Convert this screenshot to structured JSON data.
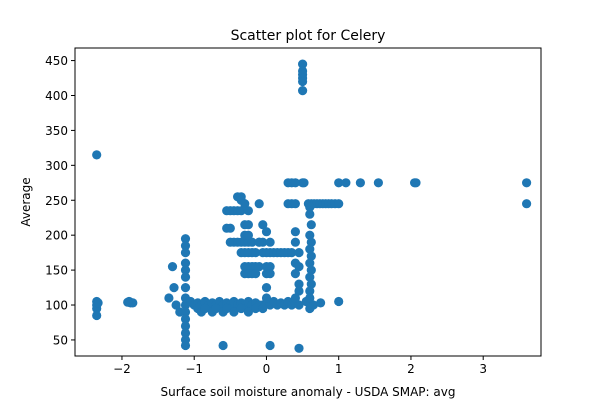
{
  "chart_data": {
    "type": "scatter",
    "title": "Scatter plot for Celery",
    "xlabel": "Surface soil moisture anomaly  - USDA SMAP: avg",
    "ylabel": "Average",
    "xlim": [
      -2.65,
      3.8
    ],
    "ylim": [
      27,
      468
    ],
    "xticks": [
      -2,
      -1,
      0,
      1,
      2,
      3
    ],
    "yticks": [
      50,
      100,
      150,
      200,
      250,
      300,
      350,
      400,
      450
    ],
    "grid": false,
    "legend": "none",
    "marker_color": "#1f77b4",
    "series": [
      {
        "points": [
          [
            -2.35,
            315
          ],
          [
            -2.35,
            105
          ],
          [
            -2.35,
            100
          ],
          [
            -2.35,
            95
          ],
          [
            -2.35,
            85
          ],
          [
            -2.33,
            103
          ],
          [
            -1.9,
            105
          ],
          [
            -1.88,
            103
          ],
          [
            -1.85,
            103
          ],
          [
            -1.92,
            104
          ],
          [
            -1.35,
            110
          ],
          [
            -1.3,
            155
          ],
          [
            -1.28,
            125
          ],
          [
            -1.25,
            100
          ],
          [
            -1.2,
            90
          ],
          [
            -1.12,
            195
          ],
          [
            -1.12,
            185
          ],
          [
            -1.12,
            175
          ],
          [
            -1.12,
            160
          ],
          [
            -1.12,
            150
          ],
          [
            -1.12,
            140
          ],
          [
            -1.12,
            125
          ],
          [
            -1.12,
            110
          ],
          [
            -1.12,
            100
          ],
          [
            -1.12,
            90
          ],
          [
            -1.12,
            80
          ],
          [
            -1.12,
            70
          ],
          [
            -1.12,
            60
          ],
          [
            -1.12,
            50
          ],
          [
            -1.12,
            42
          ],
          [
            -1.05,
            105
          ],
          [
            -1.0,
            100
          ],
          [
            -0.95,
            103
          ],
          [
            -0.9,
            100
          ],
          [
            -0.85,
            105
          ],
          [
            -0.8,
            100
          ],
          [
            -0.75,
            103
          ],
          [
            -0.7,
            100
          ],
          [
            -0.65,
            105
          ],
          [
            -0.6,
            100
          ],
          [
            -0.55,
            103
          ],
          [
            -0.5,
            100
          ],
          [
            -0.45,
            105
          ],
          [
            -0.4,
            100
          ],
          [
            -0.35,
            103
          ],
          [
            -0.3,
            100
          ],
          [
            -0.25,
            105
          ],
          [
            -0.2,
            100
          ],
          [
            -0.15,
            103
          ],
          [
            -0.1,
            100
          ],
          [
            -0.05,
            100
          ],
          [
            0.0,
            103
          ],
          [
            0.05,
            100
          ],
          [
            0.1,
            105
          ],
          [
            0.15,
            100
          ],
          [
            0.2,
            103
          ],
          [
            0.25,
            100
          ],
          [
            0.3,
            105
          ],
          [
            0.35,
            100
          ],
          [
            0.4,
            103
          ],
          [
            0.45,
            100
          ],
          [
            0.55,
            105
          ],
          [
            0.65,
            100
          ],
          [
            0.75,
            103
          ],
          [
            -0.95,
            95
          ],
          [
            -0.9,
            90
          ],
          [
            -0.85,
            95
          ],
          [
            -0.75,
            90
          ],
          [
            -0.7,
            95
          ],
          [
            -0.6,
            90
          ],
          [
            -0.55,
            95
          ],
          [
            -0.45,
            90
          ],
          [
            -0.35,
            95
          ],
          [
            -0.25,
            90
          ],
          [
            -0.15,
            95
          ],
          [
            -0.05,
            95
          ],
          [
            -0.6,
            42
          ],
          [
            -0.55,
            235
          ],
          [
            -0.5,
            235
          ],
          [
            -0.45,
            235
          ],
          [
            -0.4,
            235
          ],
          [
            -0.55,
            210
          ],
          [
            -0.5,
            210
          ],
          [
            -0.5,
            190
          ],
          [
            -0.45,
            190
          ],
          [
            -0.4,
            190
          ],
          [
            -0.35,
            190
          ],
          [
            -0.3,
            190
          ],
          [
            -0.25,
            190
          ],
          [
            -0.2,
            190
          ],
          [
            -0.1,
            190
          ],
          [
            -0.05,
            190
          ],
          [
            -0.4,
            255
          ],
          [
            -0.35,
            255
          ],
          [
            -0.35,
            250
          ],
          [
            -0.3,
            245
          ],
          [
            -0.35,
            235
          ],
          [
            -0.25,
            235
          ],
          [
            -0.3,
            215
          ],
          [
            -0.25,
            215
          ],
          [
            -0.3,
            200
          ],
          [
            -0.25,
            200
          ],
          [
            -0.35,
            175
          ],
          [
            -0.3,
            175
          ],
          [
            -0.25,
            175
          ],
          [
            -0.2,
            175
          ],
          [
            -0.15,
            175
          ],
          [
            -0.3,
            155
          ],
          [
            -0.25,
            155
          ],
          [
            -0.2,
            155
          ],
          [
            -0.15,
            155
          ],
          [
            -0.1,
            155
          ],
          [
            -0.3,
            145
          ],
          [
            -0.25,
            145
          ],
          [
            -0.2,
            145
          ],
          [
            -0.15,
            145
          ],
          [
            -0.1,
            245
          ],
          [
            -0.05,
            215
          ],
          [
            -0.1,
            190
          ],
          [
            -0.05,
            175
          ],
          [
            0.0,
            205
          ],
          [
            0.0,
            175
          ],
          [
            0.05,
            175
          ],
          [
            0.1,
            175
          ],
          [
            0.15,
            175
          ],
          [
            0.2,
            175
          ],
          [
            0.25,
            175
          ],
          [
            0.0,
            155
          ],
          [
            0.05,
            155
          ],
          [
            0.0,
            145
          ],
          [
            0.05,
            145
          ],
          [
            0.05,
            190
          ],
          [
            0.0,
            125
          ],
          [
            0.0,
            110
          ],
          [
            0.05,
            42
          ],
          [
            0.3,
            275
          ],
          [
            0.3,
            245
          ],
          [
            0.35,
            245
          ],
          [
            0.4,
            245
          ],
          [
            0.35,
            275
          ],
          [
            0.4,
            275
          ],
          [
            0.3,
            175
          ],
          [
            0.35,
            175
          ],
          [
            0.4,
            205
          ],
          [
            0.4,
            190
          ],
          [
            0.45,
            175
          ],
          [
            0.4,
            160
          ],
          [
            0.4,
            145
          ],
          [
            0.45,
            155
          ],
          [
            0.45,
            130
          ],
          [
            0.45,
            120
          ],
          [
            0.4,
            110
          ],
          [
            0.45,
            38
          ],
          [
            0.5,
            445
          ],
          [
            0.5,
            435
          ],
          [
            0.5,
            430
          ],
          [
            0.5,
            425
          ],
          [
            0.5,
            420
          ],
          [
            0.5,
            407
          ],
          [
            0.5,
            275
          ],
          [
            0.52,
            275
          ],
          [
            0.58,
            245
          ],
          [
            0.62,
            245
          ],
          [
            0.66,
            245
          ],
          [
            0.7,
            245
          ],
          [
            0.74,
            245
          ],
          [
            0.78,
            245
          ],
          [
            0.82,
            245
          ],
          [
            0.86,
            245
          ],
          [
            0.9,
            245
          ],
          [
            0.95,
            245
          ],
          [
            1.0,
            245
          ],
          [
            0.6,
            240
          ],
          [
            0.6,
            230
          ],
          [
            0.62,
            215
          ],
          [
            0.6,
            200
          ],
          [
            0.62,
            190
          ],
          [
            0.6,
            180
          ],
          [
            0.62,
            170
          ],
          [
            0.6,
            160
          ],
          [
            0.62,
            150
          ],
          [
            0.6,
            140
          ],
          [
            0.62,
            130
          ],
          [
            0.6,
            120
          ],
          [
            0.6,
            110
          ],
          [
            0.6,
            95
          ],
          [
            1.0,
            275
          ],
          [
            1.1,
            275
          ],
          [
            1.3,
            275
          ],
          [
            1.55,
            275
          ],
          [
            2.05,
            275
          ],
          [
            2.07,
            275
          ],
          [
            1.0,
            105
          ],
          [
            3.6,
            275
          ],
          [
            3.6,
            245
          ]
        ]
      }
    ]
  }
}
